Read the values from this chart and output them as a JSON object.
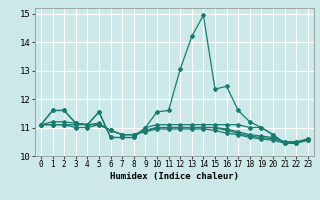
{
  "title": "",
  "xlabel": "Humidex (Indice chaleur)",
  "xlim": [
    -0.5,
    23.5
  ],
  "ylim": [
    10,
    15.2
  ],
  "yticks": [
    10,
    11,
    12,
    13,
    14,
    15
  ],
  "xticks": [
    0,
    1,
    2,
    3,
    4,
    5,
    6,
    7,
    8,
    9,
    10,
    11,
    12,
    13,
    14,
    15,
    16,
    17,
    18,
    19,
    20,
    21,
    22,
    23
  ],
  "bg_color": "#cce8e8",
  "grid_color": "#ffffff",
  "line_color": "#1a7a6e",
  "lines": [
    [
      11.1,
      11.6,
      11.6,
      11.15,
      11.1,
      11.55,
      10.65,
      10.65,
      10.65,
      11.0,
      11.55,
      11.6,
      13.05,
      14.2,
      14.95,
      12.35,
      12.45,
      11.6,
      11.2,
      11.0,
      10.75,
      10.45,
      10.45,
      10.6
    ],
    [
      11.1,
      11.6,
      11.6,
      11.15,
      11.1,
      11.55,
      10.65,
      10.65,
      10.65,
      11.0,
      11.1,
      11.1,
      11.1,
      11.1,
      11.1,
      11.1,
      11.1,
      11.1,
      11.0,
      11.0,
      10.75,
      10.45,
      10.45,
      10.6
    ],
    [
      11.1,
      11.2,
      11.2,
      11.15,
      11.1,
      11.15,
      10.9,
      10.75,
      10.75,
      10.9,
      11.0,
      11.0,
      11.0,
      11.0,
      11.0,
      11.0,
      10.95,
      10.85,
      10.75,
      10.7,
      10.65,
      10.5,
      10.5,
      10.6
    ],
    [
      11.1,
      11.1,
      11.1,
      11.1,
      11.1,
      11.1,
      10.9,
      10.75,
      10.75,
      10.9,
      11.0,
      11.0,
      11.0,
      11.0,
      11.0,
      11.0,
      10.9,
      10.8,
      10.7,
      10.65,
      10.6,
      10.5,
      10.5,
      10.55
    ],
    [
      11.1,
      11.1,
      11.1,
      11.0,
      11.0,
      11.1,
      10.9,
      10.75,
      10.75,
      10.85,
      10.95,
      10.95,
      10.95,
      10.95,
      10.95,
      10.9,
      10.8,
      10.75,
      10.65,
      10.6,
      10.55,
      10.45,
      10.45,
      10.55
    ]
  ]
}
